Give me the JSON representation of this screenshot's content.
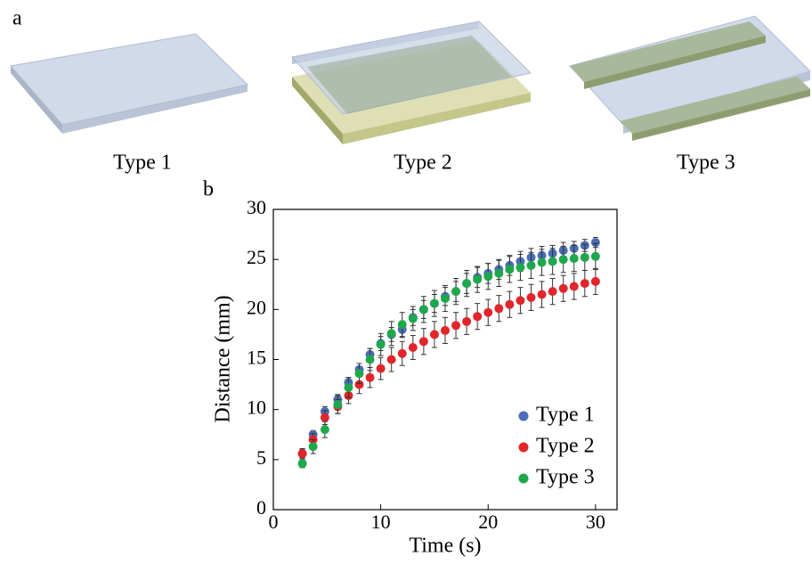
{
  "figure": {
    "panel_a_label": "a",
    "captions": [
      "Type 1",
      "Type 2",
      "Type 3"
    ],
    "panel_b_label": "b"
  },
  "chart_data": {
    "type": "scatter",
    "x_label": "Time (s)",
    "y_label": "Distance (mm)",
    "x": [
      2.7,
      3.7,
      4.8,
      6,
      7,
      8,
      9,
      10,
      11,
      12,
      13,
      14,
      15,
      16,
      17,
      18,
      19,
      20,
      21,
      22,
      23,
      24,
      25,
      26,
      27,
      28,
      29,
      30
    ],
    "series": [
      {
        "name": "Type 1",
        "color": "#4a6db5",
        "values": [
          5.6,
          7.5,
          9.8,
          11,
          12.7,
          14,
          15.5,
          16.6,
          17.5,
          18,
          19.2,
          20,
          20.6,
          21.3,
          21.8,
          22.6,
          23.2,
          23.6,
          24,
          24.4,
          24.8,
          25.2,
          25.4,
          25.6,
          25.9,
          26.1,
          26.4,
          26.7
        ],
        "errors": [
          0.4,
          0.4,
          0.5,
          0.5,
          0.5,
          0.6,
          0.6,
          0.7,
          0.7,
          0.8,
          0.8,
          0.9,
          0.9,
          0.9,
          1,
          1,
          1,
          1,
          1,
          1,
          1,
          0.9,
          0.9,
          0.8,
          0.8,
          0.7,
          0.6,
          0.5
        ]
      },
      {
        "name": "Type 2",
        "color": "#e0262a",
        "values": [
          5.6,
          7,
          9.2,
          10.3,
          11.4,
          12.5,
          13.2,
          14.1,
          15,
          15.6,
          16.2,
          16.8,
          17.5,
          17.9,
          18.4,
          18.8,
          19.3,
          19.7,
          20.1,
          20.5,
          20.9,
          21.2,
          21.5,
          21.8,
          22.1,
          22.3,
          22.6,
          22.8
        ],
        "errors": [
          0.5,
          0.6,
          0.7,
          0.7,
          0.8,
          0.9,
          1,
          1.1,
          1.2,
          1.2,
          1.2,
          1.3,
          1.3,
          1.3,
          1.3,
          1.3,
          1.3,
          1.3,
          1.3,
          1.3,
          1.3,
          1.3,
          1.3,
          1.3,
          1.3,
          1.3,
          1.3,
          1.3
        ]
      },
      {
        "name": "Type 3",
        "color": "#1fa84b",
        "values": [
          4.6,
          6.3,
          8,
          10.5,
          12.2,
          13.6,
          15,
          16.5,
          17.6,
          18.5,
          19.1,
          20,
          20.6,
          21.1,
          21.8,
          22.6,
          23,
          23.3,
          23.6,
          24,
          24.2,
          24.4,
          24.7,
          24.8,
          25,
          25.1,
          25.2,
          25.3
        ],
        "errors": [
          0.4,
          0.7,
          0.8,
          0.9,
          1,
          1,
          1.1,
          1.1,
          1.2,
          1.2,
          1.2,
          1.3,
          1.3,
          1.3,
          1.3,
          1.3,
          1.3,
          1.3,
          1.3,
          1.3,
          1.3,
          1.3,
          1.3,
          1.3,
          1.3,
          1.3,
          1.3,
          1.3
        ]
      }
    ],
    "xlim": [
      0,
      32
    ],
    "ylim": [
      0,
      30
    ],
    "xticks": [
      0,
      10,
      20,
      30
    ],
    "yticks": [
      0,
      5,
      10,
      15,
      20,
      25,
      30
    ],
    "legend": "lower right"
  }
}
